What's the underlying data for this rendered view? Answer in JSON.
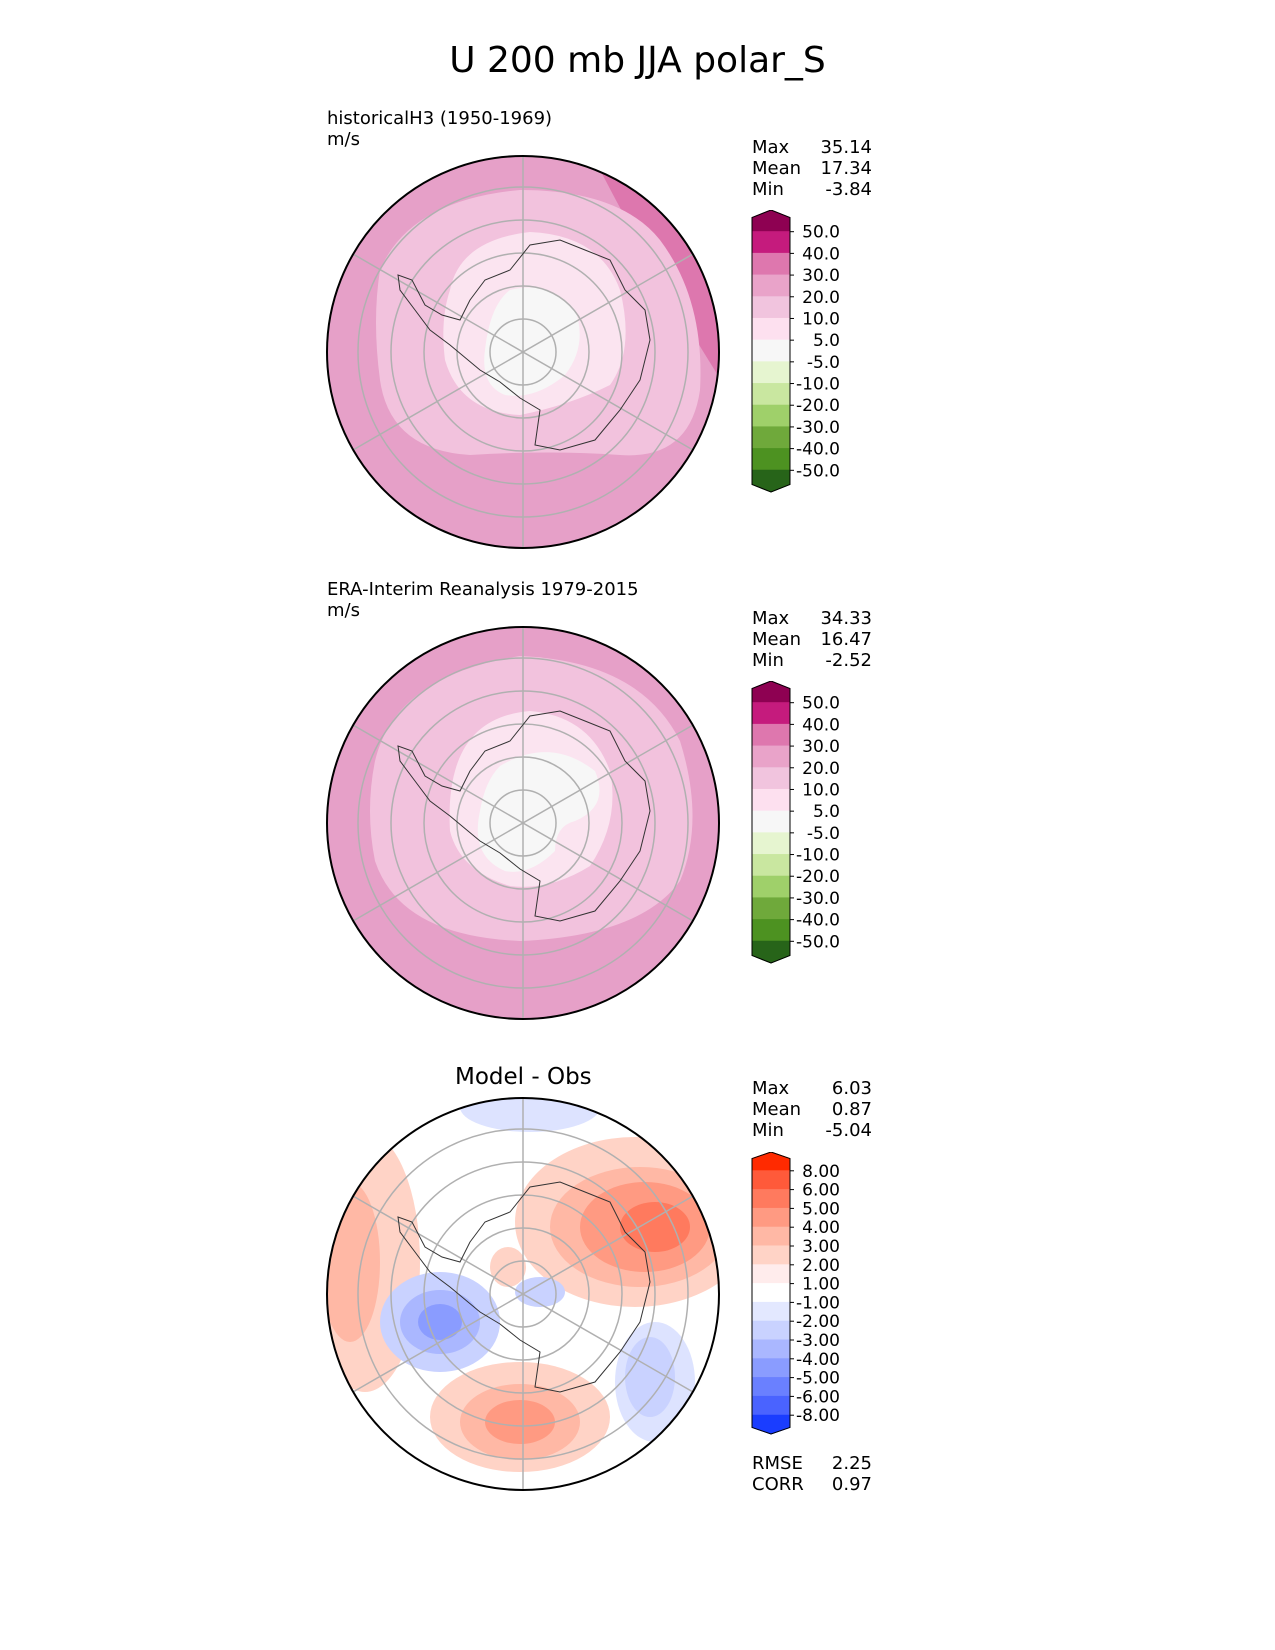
{
  "title": "U 200 mb JJA polar_S",
  "chart_data": [
    {
      "type": "heatmap",
      "projection": "south-polar-stereographic",
      "title": "historicalH3 (1950-1969)",
      "units": "m/s",
      "stats": {
        "Max": "35.14",
        "Mean": "17.34",
        "Min": "-3.84"
      },
      "colorbar": {
        "ticks": [
          "50.0",
          "40.0",
          "30.0",
          "20.0",
          "10.0",
          "5.0",
          "-5.0",
          "-10.0",
          "-20.0",
          "-30.0",
          "-40.0",
          "-50.0"
        ],
        "colors": [
          "#8e0152",
          "#c51b7d",
          "#de77ae",
          "#e9a3c9",
          "#f1c4de",
          "#fde0ef",
          "#f7f7f7",
          "#e6f5d0",
          "#c9e7a0",
          "#9fd06a",
          "#6fa93b",
          "#4d9221",
          "#276419"
        ]
      },
      "field_colors": {
        "outer": "#e6a0c8",
        "ring": "#f2c2dd",
        "inner": "#fbe4f0",
        "core": "#f7f7f7",
        "jet": "#dd77ae"
      }
    },
    {
      "type": "heatmap",
      "projection": "south-polar-stereographic",
      "title": "ERA-Interim Reanalysis 1979-2015",
      "units": "m/s",
      "stats": {
        "Max": "34.33",
        "Mean": "16.47",
        "Min": "-2.52"
      },
      "colorbar": {
        "ticks": [
          "50.0",
          "40.0",
          "30.0",
          "20.0",
          "10.0",
          "5.0",
          "-5.0",
          "-10.0",
          "-20.0",
          "-30.0",
          "-40.0",
          "-50.0"
        ],
        "colors": [
          "#8e0152",
          "#c51b7d",
          "#de77ae",
          "#e9a3c9",
          "#f1c4de",
          "#fde0ef",
          "#f7f7f7",
          "#e6f5d0",
          "#c9e7a0",
          "#9fd06a",
          "#6fa93b",
          "#4d9221",
          "#276419"
        ]
      },
      "field_colors": {
        "outer": "#e6a0c8",
        "ring": "#f2c2dd",
        "inner": "#fbe4f0",
        "core": "#f7f7f7",
        "jet": "#dd77ae"
      }
    },
    {
      "type": "heatmap",
      "projection": "south-polar-stereographic",
      "title": "Model - Obs",
      "stats": {
        "Max": "6.03",
        "Mean": "0.87",
        "Min": "-5.04"
      },
      "metrics": {
        "RMSE": "2.25",
        "CORR": "0.97"
      },
      "colorbar": {
        "ticks": [
          "8.00",
          "6.00",
          "5.00",
          "4.00",
          "3.00",
          "2.00",
          "1.00",
          "-1.00",
          "-2.00",
          "-3.00",
          "-4.00",
          "-5.00",
          "-6.00",
          "-8.00"
        ],
        "colors": [
          "#ff2a00",
          "#ff5a3a",
          "#ff7a5e",
          "#ff9a82",
          "#ffb8a5",
          "#ffd3c6",
          "#ffecec",
          "#ffffff",
          "#e3e8ff",
          "#c9d2ff",
          "#aab7ff",
          "#8a9cff",
          "#6a80ff",
          "#4a63ff",
          "#1a3dff"
        ]
      }
    }
  ]
}
